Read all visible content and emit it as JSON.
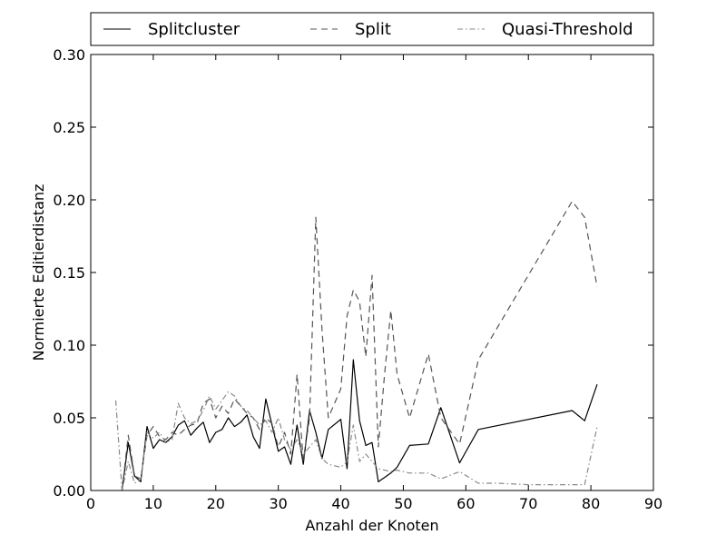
{
  "chart_data": {
    "type": "line",
    "title": "",
    "xlabel": "Anzahl der Knoten",
    "ylabel": "Normierte Editierdistanz",
    "xlim": [
      0,
      90
    ],
    "ylim": [
      0.0,
      0.3
    ],
    "xticks": [
      0,
      10,
      20,
      30,
      40,
      50,
      60,
      70,
      80,
      90
    ],
    "yticks": [
      0.0,
      0.05,
      0.1,
      0.15,
      0.2,
      0.25,
      0.3
    ],
    "xtick_labels": [
      "0",
      "10",
      "20",
      "30",
      "40",
      "50",
      "60",
      "70",
      "80",
      "90"
    ],
    "ytick_labels": [
      "0.00",
      "0.05",
      "0.10",
      "0.15",
      "0.20",
      "0.25",
      "0.30"
    ],
    "grid": false,
    "legend_position": "top, above plot, horizontal",
    "series": [
      {
        "name": "Splitcluster",
        "style": "solid",
        "color": "#000000",
        "x": [
          5,
          6,
          7,
          8,
          9,
          10,
          11,
          12,
          13,
          14,
          15,
          16,
          17,
          18,
          19,
          20,
          21,
          22,
          23,
          24,
          25,
          26,
          27,
          28,
          29,
          30,
          31,
          32,
          33,
          34,
          35,
          36,
          37,
          38,
          40,
          41,
          42,
          43,
          44,
          45,
          46,
          47,
          48,
          49,
          51,
          54,
          56,
          59,
          62,
          77,
          79,
          81
        ],
        "y": [
          0.0,
          0.033,
          0.01,
          0.006,
          0.044,
          0.029,
          0.035,
          0.033,
          0.037,
          0.045,
          0.048,
          0.038,
          0.043,
          0.047,
          0.033,
          0.04,
          0.042,
          0.05,
          0.044,
          0.047,
          0.052,
          0.037,
          0.029,
          0.063,
          0.045,
          0.027,
          0.03,
          0.018,
          0.045,
          0.018,
          0.055,
          0.04,
          0.022,
          0.042,
          0.049,
          0.015,
          0.09,
          0.048,
          0.031,
          0.033,
          0.006,
          0.009,
          0.012,
          0.016,
          0.031,
          0.032,
          0.057,
          0.019,
          0.042,
          0.055,
          0.048,
          0.073
        ]
      },
      {
        "name": "Split",
        "style": "dashed",
        "color": "#555555",
        "x": [
          5,
          6,
          7,
          8,
          9,
          10,
          11,
          12,
          13,
          14,
          15,
          16,
          17,
          18,
          19,
          20,
          21,
          22,
          23,
          24,
          25,
          26,
          27,
          28,
          29,
          30,
          31,
          32,
          33,
          34,
          35,
          36,
          37,
          38,
          40,
          41,
          42,
          43,
          44,
          45,
          46,
          47,
          48,
          49,
          51,
          54,
          56,
          59,
          62,
          77,
          79,
          81
        ],
        "y": [
          0.0,
          0.038,
          0.01,
          0.008,
          0.038,
          0.044,
          0.037,
          0.035,
          0.04,
          0.038,
          0.042,
          0.045,
          0.046,
          0.06,
          0.063,
          0.05,
          0.058,
          0.053,
          0.063,
          0.058,
          0.053,
          0.05,
          0.042,
          0.05,
          0.046,
          0.03,
          0.04,
          0.025,
          0.08,
          0.02,
          0.05,
          0.188,
          0.11,
          0.05,
          0.07,
          0.12,
          0.138,
          0.13,
          0.092,
          0.148,
          0.03,
          0.08,
          0.124,
          0.08,
          0.05,
          0.094,
          0.05,
          0.032,
          0.09,
          0.199,
          0.188,
          0.14
        ]
      },
      {
        "name": "Quasi-Threshold",
        "style": "dashdot",
        "color": "#888888",
        "x": [
          4,
          5,
          6,
          7,
          8,
          9,
          10,
          11,
          12,
          13,
          14,
          15,
          16,
          17,
          18,
          19,
          20,
          21,
          22,
          23,
          24,
          25,
          26,
          27,
          28,
          29,
          30,
          31,
          32,
          33,
          34,
          35,
          36,
          37,
          38,
          40,
          41,
          42,
          43,
          44,
          45,
          46,
          47,
          48,
          49,
          51,
          54,
          56,
          59,
          62,
          65,
          70,
          75,
          79,
          81
        ],
        "y": [
          0.062,
          0.0,
          0.02,
          0.005,
          0.008,
          0.04,
          0.036,
          0.04,
          0.033,
          0.035,
          0.06,
          0.05,
          0.046,
          0.048,
          0.055,
          0.065,
          0.056,
          0.062,
          0.068,
          0.065,
          0.058,
          0.055,
          0.05,
          0.045,
          0.048,
          0.04,
          0.05,
          0.035,
          0.028,
          0.035,
          0.025,
          0.03,
          0.035,
          0.022,
          0.018,
          0.016,
          0.02,
          0.045,
          0.02,
          0.025,
          0.02,
          0.015,
          0.014,
          0.013,
          0.014,
          0.012,
          0.012,
          0.008,
          0.013,
          0.005,
          0.005,
          0.004,
          0.004,
          0.004,
          0.044
        ]
      }
    ]
  }
}
